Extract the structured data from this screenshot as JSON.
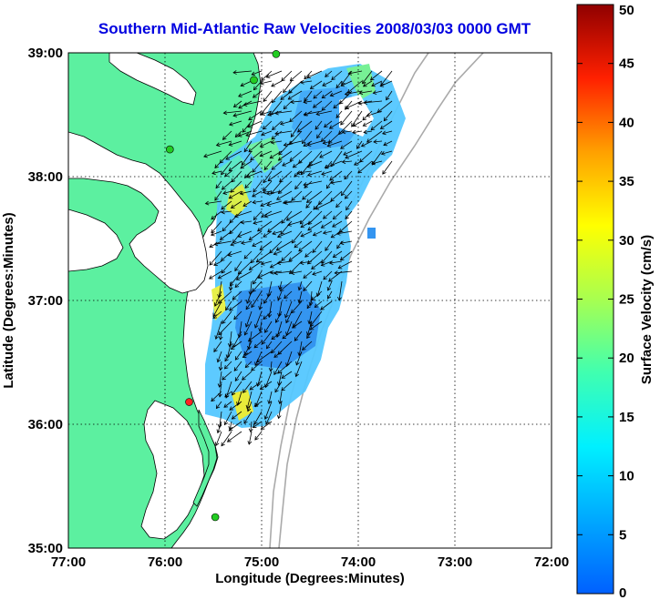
{
  "title": "Southern Mid-Atlantic Raw Velocities 2008/03/03 0000 GMT",
  "x_axis": {
    "label": "Longitude (Degrees:Minutes)",
    "ticks": [
      "77:00",
      "76:00",
      "75:00",
      "74:00",
      "73:00",
      "72:00"
    ]
  },
  "y_axis": {
    "label": "Latitude (Degrees:Minutes)",
    "ticks": [
      "39:00",
      "38:00",
      "37:00",
      "36:00",
      "35:00"
    ]
  },
  "colorbar": {
    "label": "Surface Velocity (cm/s)",
    "ticks": [
      "50",
      "45",
      "40",
      "35",
      "30",
      "25",
      "20",
      "15",
      "10",
      "5",
      "0"
    ],
    "colormap": "jet",
    "min": 0,
    "max": 50
  },
  "map": {
    "land_color": "#5cf0a0",
    "water_color": "#ffffff",
    "grid": "dotted",
    "lon_range": [
      -77,
      -72
    ],
    "lat_range": [
      35,
      39
    ]
  },
  "stations": [
    {
      "color": "#22cc22",
      "lon": -74.85,
      "lat": 38.99
    },
    {
      "color": "#22cc22",
      "lon": -75.08,
      "lat": 38.78
    },
    {
      "color": "#22cc22",
      "lon": -75.95,
      "lat": 38.22
    },
    {
      "color": "#ff2222",
      "lon": -75.75,
      "lat": 36.18
    },
    {
      "color": "#22cc22",
      "lon": -75.48,
      "lat": 35.25
    }
  ]
}
